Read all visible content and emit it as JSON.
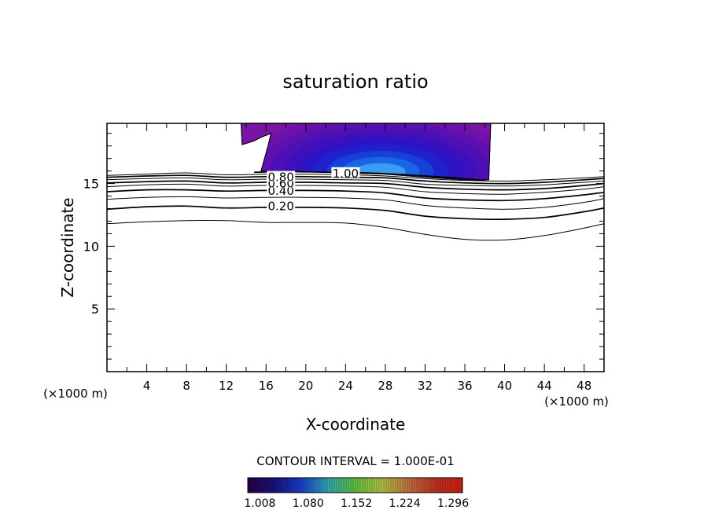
{
  "chart_data": {
    "type": "contour",
    "title": "saturation ratio",
    "xlabel": "X-coordinate",
    "ylabel": "Z-coordinate",
    "x_unit_left": "(×1000 m)",
    "x_unit_right": "(×1000 m)",
    "xlim": [
      0,
      50
    ],
    "ylim": [
      0,
      19.8
    ],
    "x_ticks": [
      4,
      8,
      12,
      16,
      20,
      24,
      28,
      32,
      36,
      40,
      44,
      48
    ],
    "y_ticks": [
      5,
      10,
      15
    ],
    "contour_interval_text": "CONTOUR INTERVAL = 1.000E-01",
    "contour_labels": [
      {
        "text": "0.20",
        "x": 17.5,
        "y": 13.2
      },
      {
        "text": "0.40",
        "x": 17.5,
        "y": 14.4
      },
      {
        "text": "0.60",
        "x": 17.5,
        "y": 15.0
      },
      {
        "text": "0.80",
        "x": 17.5,
        "y": 15.5
      },
      {
        "text": "1.00",
        "x": 24.0,
        "y": 15.8
      }
    ],
    "contour_lines": [
      {
        "level": 0.1,
        "points": [
          [
            0,
            11.8
          ],
          [
            4,
            11.95
          ],
          [
            8,
            12.05
          ],
          [
            12,
            12.05
          ],
          [
            16,
            11.9
          ],
          [
            20,
            11.9
          ],
          [
            24,
            11.85
          ],
          [
            28,
            11.5
          ],
          [
            32,
            10.95
          ],
          [
            36,
            10.55
          ],
          [
            40,
            10.5
          ],
          [
            44,
            10.85
          ],
          [
            48,
            11.45
          ],
          [
            50,
            11.8
          ]
        ]
      },
      {
        "level": 0.2,
        "points": [
          [
            0,
            12.95
          ],
          [
            4,
            13.15
          ],
          [
            8,
            13.2
          ],
          [
            12,
            13.05
          ],
          [
            16,
            13.1
          ],
          [
            20,
            13.1
          ],
          [
            24,
            13.05
          ],
          [
            28,
            12.85
          ],
          [
            32,
            12.4
          ],
          [
            36,
            12.2
          ],
          [
            40,
            12.15
          ],
          [
            44,
            12.3
          ],
          [
            48,
            12.75
          ],
          [
            50,
            13.05
          ]
        ]
      },
      {
        "level": 0.3,
        "points": [
          [
            0,
            13.75
          ],
          [
            4,
            13.9
          ],
          [
            8,
            13.95
          ],
          [
            12,
            13.85
          ],
          [
            16,
            13.9
          ],
          [
            20,
            13.9
          ],
          [
            24,
            13.85
          ],
          [
            28,
            13.7
          ],
          [
            32,
            13.25
          ],
          [
            36,
            13.05
          ],
          [
            40,
            12.95
          ],
          [
            44,
            13.1
          ],
          [
            48,
            13.5
          ],
          [
            50,
            13.8
          ]
        ]
      },
      {
        "level": 0.4,
        "points": [
          [
            0,
            14.35
          ],
          [
            4,
            14.5
          ],
          [
            8,
            14.5
          ],
          [
            12,
            14.4
          ],
          [
            16,
            14.45
          ],
          [
            20,
            14.45
          ],
          [
            24,
            14.4
          ],
          [
            28,
            14.25
          ],
          [
            32,
            13.85
          ],
          [
            36,
            13.7
          ],
          [
            40,
            13.65
          ],
          [
            44,
            13.8
          ],
          [
            48,
            14.1
          ],
          [
            50,
            14.3
          ]
        ]
      },
      {
        "level": 0.5,
        "points": [
          [
            0,
            14.75
          ],
          [
            4,
            14.9
          ],
          [
            8,
            14.95
          ],
          [
            12,
            14.8
          ],
          [
            16,
            14.85
          ],
          [
            20,
            14.85
          ],
          [
            24,
            14.8
          ],
          [
            28,
            14.7
          ],
          [
            32,
            14.35
          ],
          [
            36,
            14.2
          ],
          [
            40,
            14.15
          ],
          [
            44,
            14.3
          ],
          [
            48,
            14.55
          ],
          [
            50,
            14.75
          ]
        ]
      },
      {
        "level": 0.6,
        "points": [
          [
            0,
            15.05
          ],
          [
            4,
            15.15
          ],
          [
            8,
            15.2
          ],
          [
            12,
            15.05
          ],
          [
            16,
            15.1
          ],
          [
            20,
            15.1
          ],
          [
            24,
            15.05
          ],
          [
            28,
            15.0
          ],
          [
            32,
            14.7
          ],
          [
            36,
            14.55
          ],
          [
            40,
            14.5
          ],
          [
            44,
            14.6
          ],
          [
            48,
            14.85
          ],
          [
            50,
            15.0
          ]
        ]
      },
      {
        "level": 0.7,
        "points": [
          [
            0,
            15.3
          ],
          [
            4,
            15.4
          ],
          [
            8,
            15.45
          ],
          [
            12,
            15.3
          ],
          [
            16,
            15.35
          ],
          [
            20,
            15.35
          ],
          [
            24,
            15.3
          ],
          [
            28,
            15.25
          ],
          [
            32,
            14.95
          ],
          [
            36,
            14.85
          ],
          [
            40,
            14.8
          ],
          [
            44,
            14.9
          ],
          [
            48,
            15.1
          ],
          [
            50,
            15.2
          ]
        ]
      },
      {
        "level": 0.8,
        "points": [
          [
            0,
            15.5
          ],
          [
            4,
            15.6
          ],
          [
            8,
            15.65
          ],
          [
            12,
            15.5
          ],
          [
            16,
            15.55
          ],
          [
            20,
            15.55
          ],
          [
            24,
            15.5
          ],
          [
            28,
            15.45
          ],
          [
            32,
            15.2
          ],
          [
            36,
            15.05
          ],
          [
            40,
            15.0
          ],
          [
            44,
            15.1
          ],
          [
            48,
            15.3
          ],
          [
            50,
            15.4
          ]
        ]
      },
      {
        "level": 0.9,
        "points": [
          [
            0,
            15.65
          ],
          [
            4,
            15.75
          ],
          [
            8,
            15.85
          ],
          [
            12,
            15.7
          ],
          [
            16,
            15.75
          ],
          [
            20,
            15.75
          ],
          [
            24,
            15.7
          ],
          [
            28,
            15.6
          ],
          [
            32,
            15.4
          ],
          [
            36,
            15.25
          ],
          [
            40,
            15.2
          ],
          [
            44,
            15.3
          ],
          [
            48,
            15.45
          ],
          [
            50,
            15.55
          ]
        ]
      },
      {
        "level": 1.0,
        "points": [
          [
            14.8,
            15.9
          ],
          [
            18,
            15.95
          ],
          [
            22,
            15.9
          ],
          [
            26,
            15.85
          ],
          [
            30,
            15.7
          ],
          [
            34,
            15.5
          ],
          [
            38,
            15.25
          ]
        ]
      }
    ],
    "supersaturated_region": {
      "outline": [
        [
          13.5,
          19.8
        ],
        [
          38.6,
          19.8
        ],
        [
          38.4,
          15.3
        ],
        [
          36,
          15.3
        ],
        [
          32,
          15.5
        ],
        [
          28,
          15.75
        ],
        [
          24,
          15.85
        ],
        [
          20,
          15.95
        ],
        [
          15.5,
          16.0
        ],
        [
          16.2,
          18.0
        ],
        [
          16.5,
          19.0
        ],
        [
          15.5,
          18.7
        ],
        [
          14.8,
          18.4
        ],
        [
          13.6,
          18.1
        ]
      ],
      "max_center": {
        "x": 27.5,
        "z": 15.95
      }
    },
    "colorbar": {
      "labels": [
        "1.008",
        "1.080",
        "1.152",
        "1.224",
        "1.296"
      ],
      "range": [
        0.99,
        1.31
      ],
      "colors": [
        "#2a0040",
        "#1a1080",
        "#1a3fd0",
        "#30a8b0",
        "#60c040",
        "#b0c040",
        "#c07040",
        "#c03020",
        "#d02010"
      ]
    },
    "fill_levels": [
      {
        "color": "#7a14a6"
      },
      {
        "color": "#6c12aa"
      },
      {
        "color": "#5c10b0"
      },
      {
        "color": "#4c10b6"
      },
      {
        "color": "#3c10bc"
      },
      {
        "color": "#2c14c4"
      },
      {
        "color": "#1e22cc"
      },
      {
        "color": "#1640d8"
      },
      {
        "color": "#1866e4"
      },
      {
        "color": "#3c9cf4"
      }
    ]
  }
}
